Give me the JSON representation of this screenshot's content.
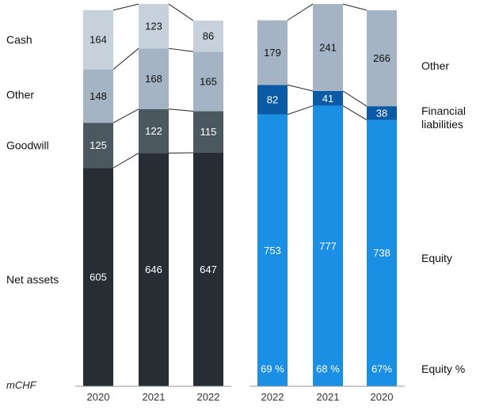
{
  "chart_data": [
    {
      "type": "bar",
      "stacked": true,
      "categories": [
        "2020",
        "2021",
        "2022"
      ],
      "series": [
        {
          "name": "Net assets",
          "values": [
            605,
            646,
            647
          ],
          "color": "#262d33"
        },
        {
          "name": "Goodwill",
          "values": [
            125,
            122,
            115
          ],
          "color": "#4b5860"
        },
        {
          "name": "Other",
          "values": [
            148,
            168,
            165
          ],
          "color": "#a5b4c4"
        },
        {
          "name": "Cash",
          "values": [
            164,
            123,
            86
          ],
          "color": "#c7d1dc"
        }
      ],
      "unit": "mCHF"
    },
    {
      "type": "bar",
      "stacked": true,
      "categories": [
        "2022",
        "2021",
        "2020"
      ],
      "series": [
        {
          "name": "Equity",
          "values": [
            753,
            777,
            738
          ],
          "color": "#1a8fe3"
        },
        {
          "name": "Financial liabilities",
          "values": [
            82,
            41,
            38
          ],
          "color": "#0a5aa6"
        },
        {
          "name": "Other",
          "values": [
            179,
            241,
            266
          ],
          "color": "#a5b4c4"
        }
      ],
      "equity_percent": {
        "name": "Equity %",
        "labels": [
          "69 %",
          "68 %",
          "67%"
        ]
      }
    }
  ]
}
